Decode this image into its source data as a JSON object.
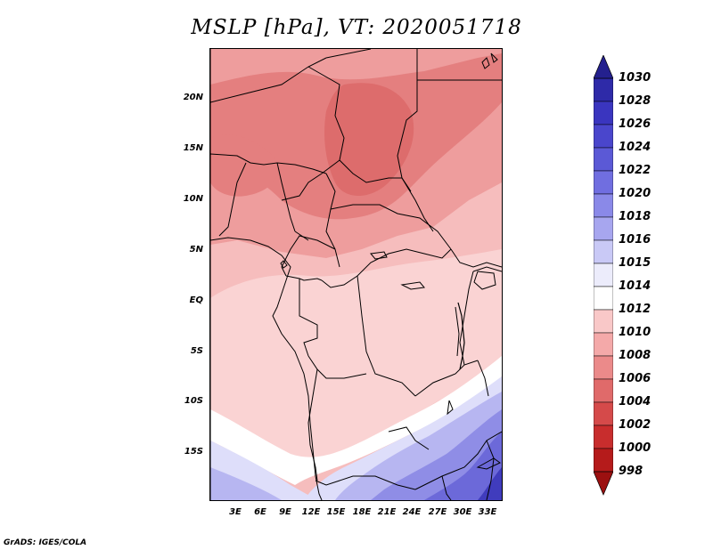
{
  "title": "MSLP [hPa], VT: 2020051718",
  "footer": "GrADS: IGES/COLA",
  "lat_labels": [
    "20N",
    "15N",
    "10N",
    "5N",
    "EQ",
    "5S",
    "10S",
    "15S"
  ],
  "lon_labels": [
    "3E",
    "6E",
    "9E",
    "12E",
    "15E",
    "18E",
    "21E",
    "24E",
    "27E",
    "30E",
    "33E"
  ],
  "colorbar": {
    "labels": [
      "1030",
      "1028",
      "1026",
      "1024",
      "1022",
      "1020",
      "1018",
      "1016",
      "1015",
      "1014",
      "1012",
      "1010",
      "1008",
      "1006",
      "1004",
      "1002",
      "1000",
      "998"
    ],
    "colors": [
      "#24208e",
      "#2e2aa8",
      "#3a35bf",
      "#4a46cc",
      "#5b59d6",
      "#706ee0",
      "#8a89e8",
      "#a7a6ef",
      "#c9c9f6",
      "#ececfb",
      "#ffffff",
      "#f9c8c8",
      "#f4a9a9",
      "#eb8a8a",
      "#e06a6a",
      "#d54a4a",
      "#c82d2d",
      "#b51b1b",
      "#9c1010"
    ]
  },
  "colors": {
    "p1008": "#e47f7f",
    "p1009": "#ee9d9d",
    "p1010": "#f6bdbd",
    "p1011": "#fad3d3",
    "p1012": "#ffffff",
    "p1014": "#dedefa",
    "p1016": "#b7b6f1",
    "p1018": "#8f8de6",
    "p1020": "#6c69d9",
    "p1024": "#403cbd",
    "border": "#000000"
  }
}
